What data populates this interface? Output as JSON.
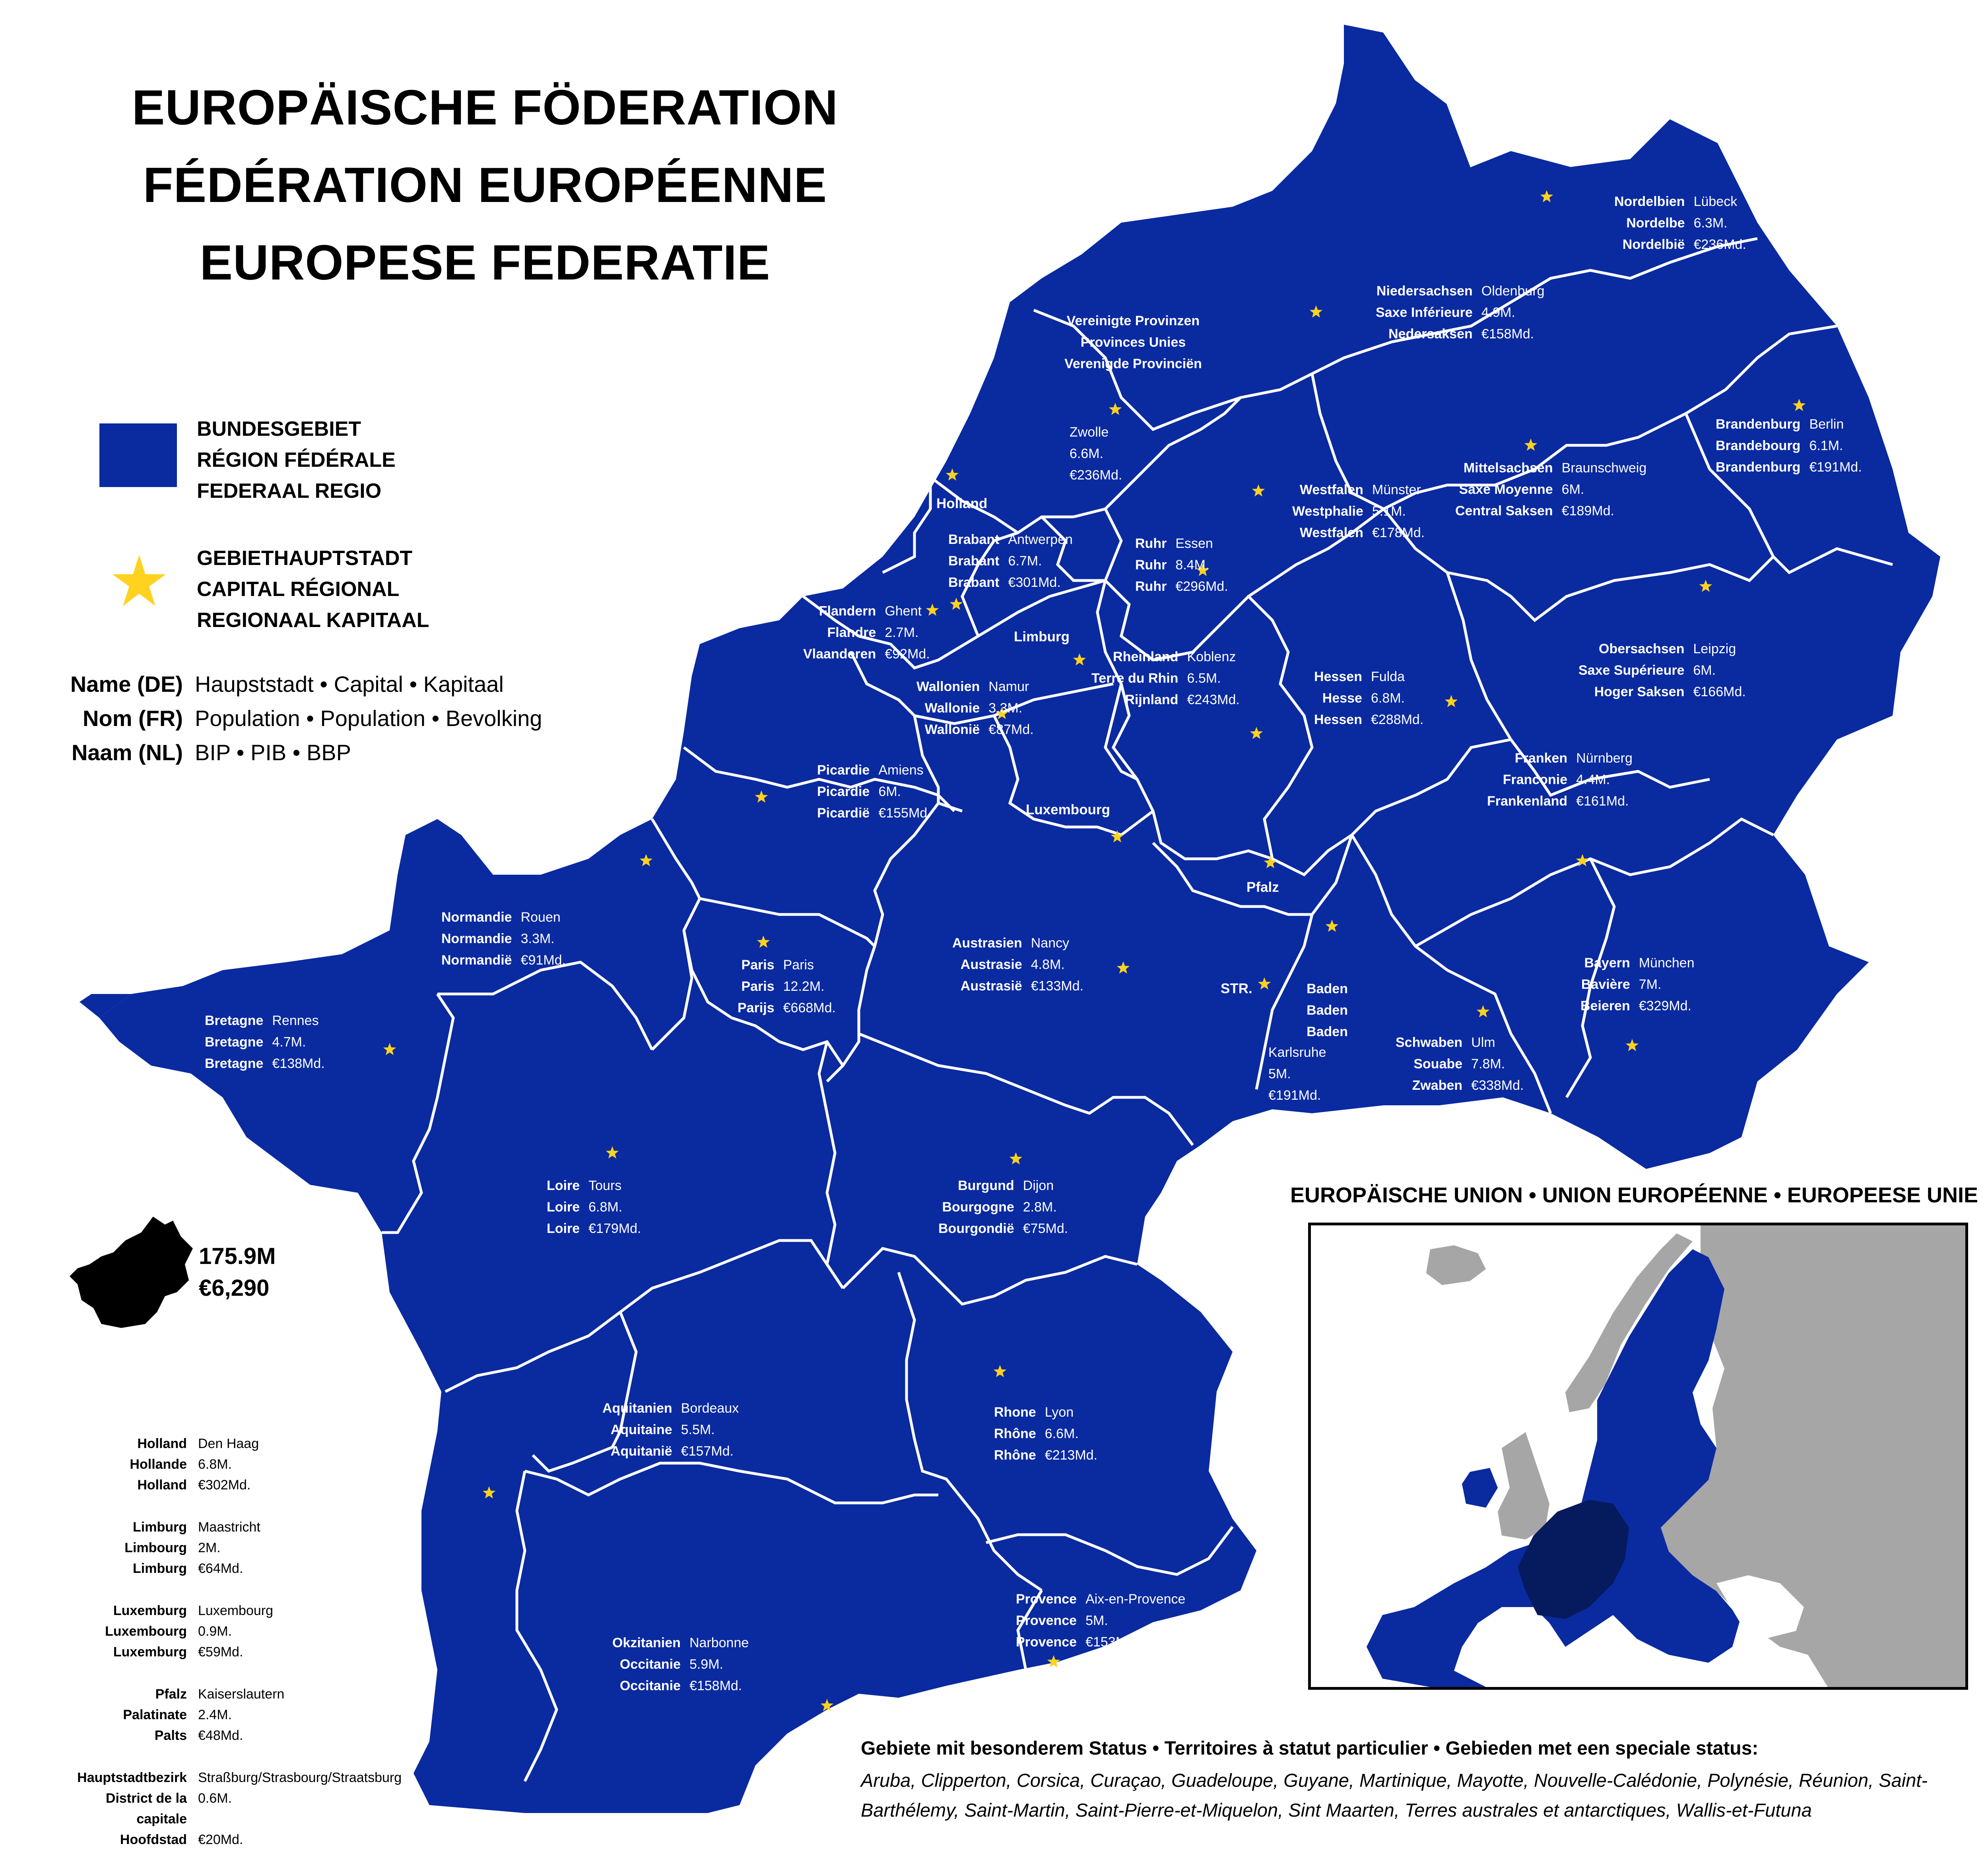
{
  "title": {
    "de": "EUROPÄISCHE FÖDERATION",
    "fr": "FÉDÉRATION EUROPÉENNE",
    "nl": "EUROPESE FEDERATIE"
  },
  "colors": {
    "federal_blue": "#0a2aa0",
    "capital_star": "#ffd21f",
    "border_white": "#ffffff",
    "eu_member": "#0a2aa0",
    "federation_dark": "#061a5e",
    "non_eu": "#a6a6a6"
  },
  "legend": {
    "region": [
      "BUNDESGEBIET",
      "RÉGION FÉDÉRALE",
      "FEDERAAL REGIO"
    ],
    "capital": [
      "GEBIETHAUPTSTADT",
      "CAPITAL RÉGIONAL",
      "REGIONAAL KAPITAAL"
    ],
    "capital_icon": "star-icon"
  },
  "key": [
    {
      "k": "Name (DE)",
      "v": "Haupststadt • Capital • Kapitaal"
    },
    {
      "k": "Nom (FR)",
      "v": "Population • Population • Bevolking"
    },
    {
      "k": "Naam (NL)",
      "v": "BIP • PIB • BBP"
    }
  ],
  "regions": [
    {
      "id": "nordelbien",
      "names": [
        "Nordelbien",
        "Nordelbe",
        "Nordelbië"
      ],
      "stats": [
        "Lübeck",
        "6.3M.",
        "€236Md."
      ]
    },
    {
      "id": "niedersachsen",
      "names": [
        "Niedersachsen",
        "Saxe Inférieure",
        "Nedersaksen"
      ],
      "stats": [
        "Oldenburg",
        "4.9M.",
        "€158Md."
      ]
    },
    {
      "id": "brandenburg",
      "names": [
        "Brandenburg",
        "Brandebourg",
        "Brandenburg"
      ],
      "stats": [
        "Berlin",
        "6.1M.",
        "€191Md."
      ]
    },
    {
      "id": "mittelsachsen",
      "names": [
        "Mittelsachsen",
        "Saxe Moyenne",
        "Central Saksen"
      ],
      "stats": [
        "Braunschweig",
        "6M.",
        "€189Md."
      ]
    },
    {
      "id": "westfalen",
      "names": [
        "Westfalen",
        "Westphalie",
        "Westfalen"
      ],
      "stats": [
        "Münster",
        "5.1M.",
        "€178Md."
      ]
    },
    {
      "id": "ruhr",
      "names": [
        "Ruhr",
        "Ruhr",
        "Ruhr"
      ],
      "stats": [
        "Essen",
        "8.4M.",
        "€296Md."
      ]
    },
    {
      "id": "obersachsen",
      "names": [
        "Obersachsen",
        "Saxe Supérieure",
        "Hoger Saksen"
      ],
      "stats": [
        "Leipzig",
        "6M.",
        "€166Md."
      ]
    },
    {
      "id": "brabant",
      "names": [
        "Brabant",
        "Brabant",
        "Brabant"
      ],
      "stats": [
        "Antwerpen",
        "6.7M.",
        "€301Md."
      ]
    },
    {
      "id": "flandern",
      "names": [
        "Flandern",
        "Flandre",
        "Vlaanderen"
      ],
      "stats": [
        "Ghent",
        "2.7M.",
        "€92Md."
      ]
    },
    {
      "id": "rheinland",
      "names": [
        "Rheinland",
        "Terre du Rhin",
        "Rijnland"
      ],
      "stats": [
        "Koblenz",
        "6.5M.",
        "€243Md."
      ]
    },
    {
      "id": "hessen",
      "names": [
        "Hessen",
        "Hesse",
        "Hessen"
      ],
      "stats": [
        "Fulda",
        "6.8M.",
        "€288Md."
      ]
    },
    {
      "id": "wallonien",
      "names": [
        "Wallonien",
        "Wallonie",
        "Wallonië"
      ],
      "stats": [
        "Namur",
        "3.3M.",
        "€87Md."
      ]
    },
    {
      "id": "franken",
      "names": [
        "Franken",
        "Franconie",
        "Frankenland"
      ],
      "stats": [
        "Nürnberg",
        "4.4M.",
        "€161Md."
      ]
    },
    {
      "id": "picardie",
      "names": [
        "Picardie",
        "Picardie",
        "Picardië"
      ],
      "stats": [
        "Amiens",
        "6M.",
        "€155Md."
      ]
    },
    {
      "id": "normandie",
      "names": [
        "Normandie",
        "Normandie",
        "Normandië"
      ],
      "stats": [
        "Rouen",
        "3.3M.",
        "€91Md."
      ]
    },
    {
      "id": "paris",
      "names": [
        "Paris",
        "Paris",
        "Parijs"
      ],
      "stats": [
        "Paris",
        "12.2M.",
        "€668Md."
      ]
    },
    {
      "id": "austrasien",
      "names": [
        "Austrasien",
        "Austrasie",
        "Austrasië"
      ],
      "stats": [
        "Nancy",
        "4.8M.",
        "€133Md."
      ]
    },
    {
      "id": "bayern",
      "names": [
        "Bayern",
        "Bavière",
        "Beieren"
      ],
      "stats": [
        "München",
        "7M.",
        "€329Md."
      ]
    },
    {
      "id": "schwaben",
      "names": [
        "Schwaben",
        "Souabe",
        "Zwaben"
      ],
      "stats": [
        "Ulm",
        "7.8M.",
        "€338Md."
      ]
    },
    {
      "id": "bretagne",
      "names": [
        "Bretagne",
        "Bretagne",
        "Bretagne"
      ],
      "stats": [
        "Rennes",
        "4.7M.",
        "€138Md."
      ]
    },
    {
      "id": "loire",
      "names": [
        "Loire",
        "Loire",
        "Loire"
      ],
      "stats": [
        "Tours",
        "6.8M.",
        "€179Md."
      ]
    },
    {
      "id": "burgund",
      "names": [
        "Burgund",
        "Bourgogne",
        "Bourgondië"
      ],
      "stats": [
        "Dijon",
        "2.8M.",
        "€75Md."
      ]
    },
    {
      "id": "aquitanien",
      "names": [
        "Aquitanien",
        "Aquitaine",
        "Aquitanië"
      ],
      "stats": [
        "Bordeaux",
        "5.5M.",
        "€157Md."
      ]
    },
    {
      "id": "rhone",
      "names": [
        "Rhone",
        "Rhône",
        "Rhône"
      ],
      "stats": [
        "Lyon",
        "6.6M.",
        "€213Md."
      ]
    },
    {
      "id": "provence",
      "names": [
        "Provence",
        "Provence",
        "Provence"
      ],
      "stats": [
        "Aix-en-Provence",
        "5M.",
        "€153Md."
      ]
    },
    {
      "id": "okzitanien",
      "names": [
        "Okzitanien",
        "Occitanie",
        "Occitanie"
      ],
      "stats": [
        "Narbonne",
        "5.9M.",
        "€158Md."
      ]
    }
  ],
  "vp": {
    "names": [
      "Vereinigte Provinzen",
      "Provinces Unies",
      "Verenigde Provinciën"
    ],
    "stats": [
      "Zwolle",
      "6.6M.",
      "€236Md."
    ]
  },
  "baden": {
    "names": [
      "Baden",
      "Baden",
      "Baden"
    ],
    "stats": [
      "Karlsruhe",
      "5M.",
      "€191Md."
    ]
  },
  "map_labels": {
    "holland": "Holland",
    "limburg": "Limburg",
    "luxembourg": "Luxembourg",
    "pfalz": "Pfalz",
    "str": "STR."
  },
  "side_table": [
    {
      "names": [
        "Holland",
        "Hollande",
        "Holland"
      ],
      "stats": [
        "Den Haag",
        "6.8M.",
        "€302Md."
      ]
    },
    {
      "names": [
        "Limburg",
        "Limbourg",
        "Limburg"
      ],
      "stats": [
        "Maastricht",
        "2M.",
        "€64Md."
      ]
    },
    {
      "names": [
        "Luxemburg",
        "Luxembourg",
        "Luxemburg"
      ],
      "stats": [
        "Luxembourg",
        "0.9M.",
        "€59Md."
      ]
    },
    {
      "names": [
        "Pfalz",
        "Palatinate",
        "Palts"
      ],
      "stats": [
        "Kaiserslautern",
        "2.4M.",
        "€48Md."
      ]
    },
    {
      "names": [
        "Hauptstadtbezirk",
        "District de la capitale",
        "Hoofdstad"
      ],
      "stats": [
        "Straßburg/Strasbourg/Straatsburg",
        "0.6M.",
        "€20Md."
      ]
    }
  ],
  "totals": {
    "population": "175.9M",
    "gdp": "€6,290"
  },
  "eu_inset": {
    "title": "EUROPÄISCHE UNION • UNION EUROPÉENNE • EUROPEESE UNIE"
  },
  "special_status": {
    "title": "Gebiete mit besonderem Status • Territoires à statut particulier • Gebieden met een speciale status:",
    "list": "Aruba, Clipperton, Corsica, Curaçao, Guadeloupe, Guyane, Martinique, Mayotte, Nouvelle-Calédonie, Polynésie, Réunion, Saint-Barthélemy, Saint-Martin, Saint-Pierre-et-Miquelon, Sint Maarten, Terres australes et antarctiques, Wallis-et-Futuna"
  }
}
